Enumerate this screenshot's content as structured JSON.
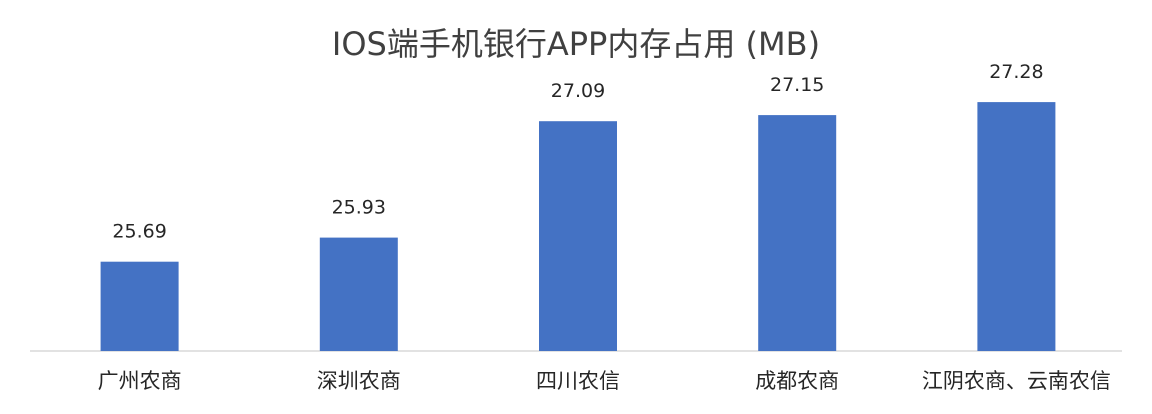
{
  "chart_data": {
    "type": "bar",
    "title": "IOS端手机银行APP内存占用 (MB)",
    "categories": [
      "广州农商",
      "深圳农商",
      "四川农信",
      "成都农商",
      "江阴农商、云南农信"
    ],
    "values": [
      25.69,
      25.93,
      27.09,
      27.15,
      27.28
    ],
    "value_labels": [
      "25.69",
      "25.93",
      "27.09",
      "27.15",
      "27.28"
    ],
    "ylim": [
      24.8,
      27.5
    ],
    "xlabel": "",
    "ylabel": "",
    "grid": false,
    "legend": "none",
    "bar_color": "#4472C4"
  }
}
